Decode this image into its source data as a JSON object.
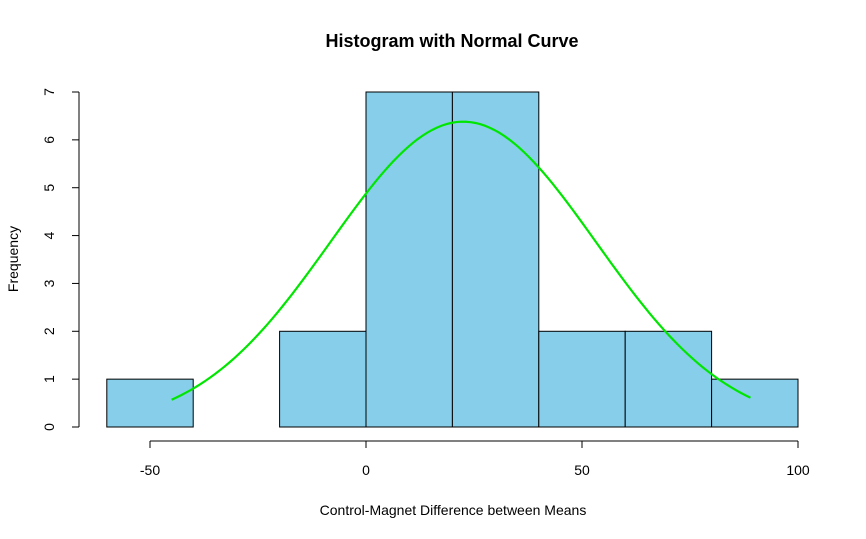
{
  "chart_data": {
    "type": "bar",
    "title": "Histogram with Normal Curve",
    "xlabel": "Control-Magnet Difference between Means",
    "ylabel": "Frequency",
    "bins": [
      {
        "start": -60,
        "end": -40,
        "count": 1
      },
      {
        "start": -40,
        "end": -20,
        "count": 0
      },
      {
        "start": -20,
        "end": 0,
        "count": 2
      },
      {
        "start": 0,
        "end": 20,
        "count": 7
      },
      {
        "start": 20,
        "end": 40,
        "count": 7
      },
      {
        "start": 40,
        "end": 60,
        "count": 2
      },
      {
        "start": 60,
        "end": 80,
        "count": 2
      },
      {
        "start": 80,
        "end": 100,
        "count": 1
      }
    ],
    "x_ticks": [
      "-50",
      "0",
      "50",
      "100"
    ],
    "x_tick_values": [
      -50,
      0,
      50,
      100
    ],
    "y_ticks": [
      "0",
      "1",
      "2",
      "3",
      "4",
      "5",
      "6",
      "7"
    ],
    "y_tick_values": [
      0,
      1,
      2,
      3,
      4,
      5,
      6,
      7
    ],
    "xlim": [
      -60,
      100
    ],
    "ylim": [
      0,
      7
    ],
    "normal_curve": {
      "mean": 22.5,
      "sd": 30.7,
      "peak_frequency": 6.38,
      "x_range": [
        -45,
        89
      ]
    },
    "grid": false,
    "colors": {
      "bar_fill": "#87CEEB",
      "bar_stroke": "#000000",
      "curve": "#00E600"
    }
  }
}
